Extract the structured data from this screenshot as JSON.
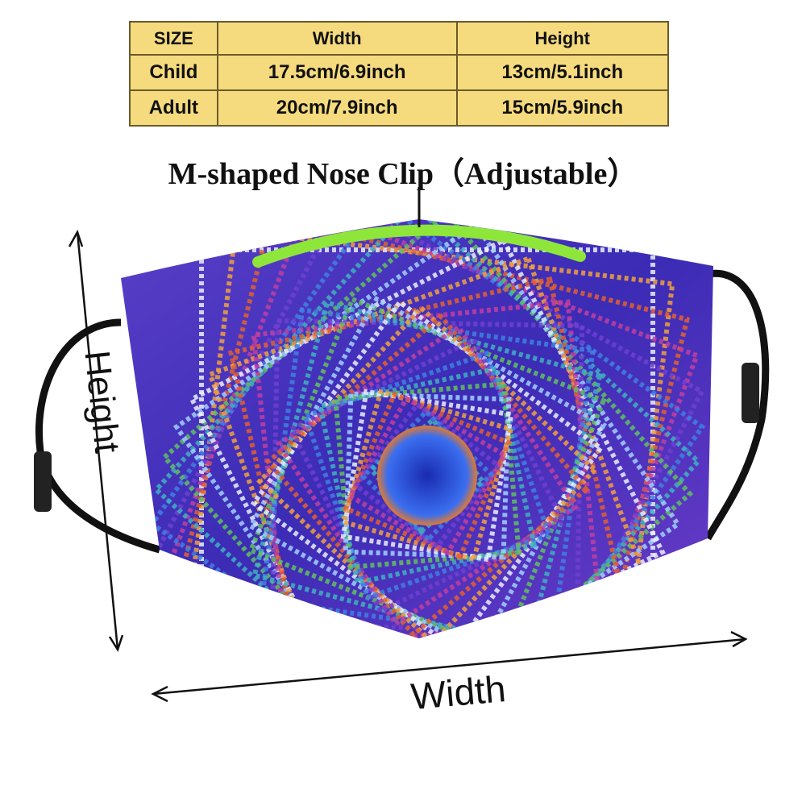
{
  "size_table": {
    "header": [
      "SIZE",
      "Width",
      "Height"
    ],
    "rows": [
      [
        "Child",
        "17.5cm/6.9inch",
        "13cm/5.1inch"
      ],
      [
        "Adult",
        "20cm/7.9inch",
        "15cm/5.9inch"
      ]
    ]
  },
  "nose_clip_label": "M-shaped Nose Clip（Adjustable）",
  "height_label": "Height",
  "width_label": "Width"
}
